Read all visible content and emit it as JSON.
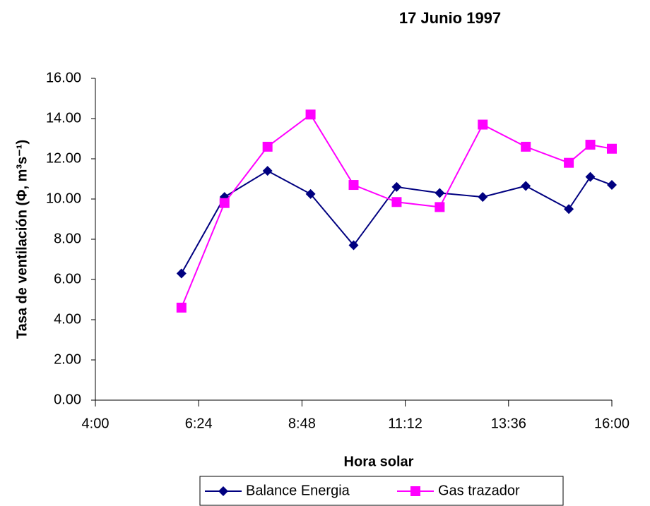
{
  "chart_data": {
    "type": "line",
    "title": "17 Junio 1997",
    "xlabel": "Hora solar",
    "ylabel": "Tasa de ventilación (Φ, m³s⁻¹)",
    "xlim": [
      240,
      960
    ],
    "xticks": [
      {
        "value": 240,
        "label": "4:00"
      },
      {
        "value": 384,
        "label": "6:24"
      },
      {
        "value": 528,
        "label": "8:48"
      },
      {
        "value": 672,
        "label": "11:12"
      },
      {
        "value": 816,
        "label": "13:36"
      },
      {
        "value": 960,
        "label": "16:00"
      }
    ],
    "ylim": [
      0,
      16
    ],
    "yticks": [
      {
        "value": 0,
        "label": "0.00"
      },
      {
        "value": 2,
        "label": "2.00"
      },
      {
        "value": 4,
        "label": "4.00"
      },
      {
        "value": 6,
        "label": "6.00"
      },
      {
        "value": 8,
        "label": "8.00"
      },
      {
        "value": 10,
        "label": "10.00"
      },
      {
        "value": 12,
        "label": "12.00"
      },
      {
        "value": 14,
        "label": "14.00"
      },
      {
        "value": 16,
        "label": "16.00"
      }
    ],
    "legend": "bottom",
    "series": [
      {
        "name": "Balance Energia",
        "color": "#000080",
        "marker": "diamond",
        "x": [
          360,
          420,
          480,
          540,
          600,
          660,
          720,
          780,
          840,
          900,
          930,
          960
        ],
        "values": [
          6.3,
          10.1,
          11.4,
          10.25,
          7.7,
          10.6,
          10.3,
          10.1,
          10.65,
          9.5,
          11.1,
          10.7
        ]
      },
      {
        "name": "Gas trazador",
        "color": "#ff00ff",
        "marker": "square",
        "x": [
          360,
          420,
          480,
          540,
          600,
          660,
          720,
          780,
          840,
          900,
          930,
          960
        ],
        "values": [
          4.6,
          9.8,
          12.6,
          14.2,
          10.7,
          9.85,
          9.6,
          13.7,
          12.6,
          11.8,
          12.7,
          12.5
        ]
      }
    ]
  }
}
